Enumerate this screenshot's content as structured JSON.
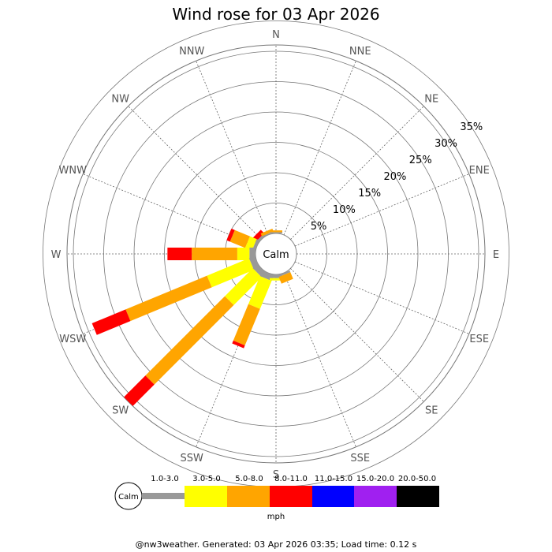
{
  "title": "Wind rose for 03 Apr 2026",
  "footer": "@nw3weather. Generated: 03 Apr 2026 03:35; Load time: 0.12 s",
  "chart_data": {
    "type": "windrose",
    "directions": [
      "N",
      "NNE",
      "NE",
      "ENE",
      "E",
      "ESE",
      "SE",
      "SSE",
      "S",
      "SSW",
      "SW",
      "WSW",
      "W",
      "WNW",
      "NW",
      "NNW"
    ],
    "radial_ticks": [
      "5%",
      "10%",
      "15%",
      "20%",
      "25%",
      "30%",
      "35%"
    ],
    "radial_values": [
      5,
      10,
      15,
      20,
      25,
      30,
      35
    ],
    "center_label": "Calm",
    "speed_bins": [
      {
        "label": "1.0-3.0",
        "color": "#999999"
      },
      {
        "label": "3.0-5.0",
        "color": "#ffff00"
      },
      {
        "label": "5.0-8.0",
        "color": "#ffa500"
      },
      {
        "label": "8.0-11.0",
        "color": "#ff0000"
      },
      {
        "label": "11.0-15.0",
        "color": "#0000ff"
      },
      {
        "label": "15.0-20.0",
        "color": "#a020f0"
      },
      {
        "label": "20.0-50.0",
        "color": "#000000"
      }
    ],
    "unit": "mph",
    "frequencies": [
      {
        "dir": "NW",
        "values": [
          0.4,
          0.0,
          0.0,
          0.8
        ]
      },
      {
        "dir": "NNW",
        "values": [
          0.2,
          0.0,
          0.5,
          0.0
        ]
      },
      {
        "dir": "WNW",
        "values": [
          0.5,
          1.2,
          2.7,
          0.6
        ]
      },
      {
        "dir": "W",
        "values": [
          1.0,
          2.0,
          7.5,
          4.0
        ]
      },
      {
        "dir": "WSW",
        "values": [
          1.0,
          7.5,
          14.5,
          6.0
        ]
      },
      {
        "dir": "SW",
        "values": [
          1.0,
          6.5,
          18.5,
          5.0
        ]
      },
      {
        "dir": "SSW",
        "values": [
          1.0,
          5.0,
          6.5,
          0.5
        ]
      },
      {
        "dir": "S",
        "values": [
          0.6,
          0.4,
          0.0,
          0.0
        ]
      },
      {
        "dir": "SSE",
        "values": [
          0.3,
          0.0,
          1.2,
          0.0
        ]
      },
      {
        "dir": "N",
        "values": [
          0.2,
          0.0,
          0.3,
          0.0
        ]
      }
    ]
  }
}
